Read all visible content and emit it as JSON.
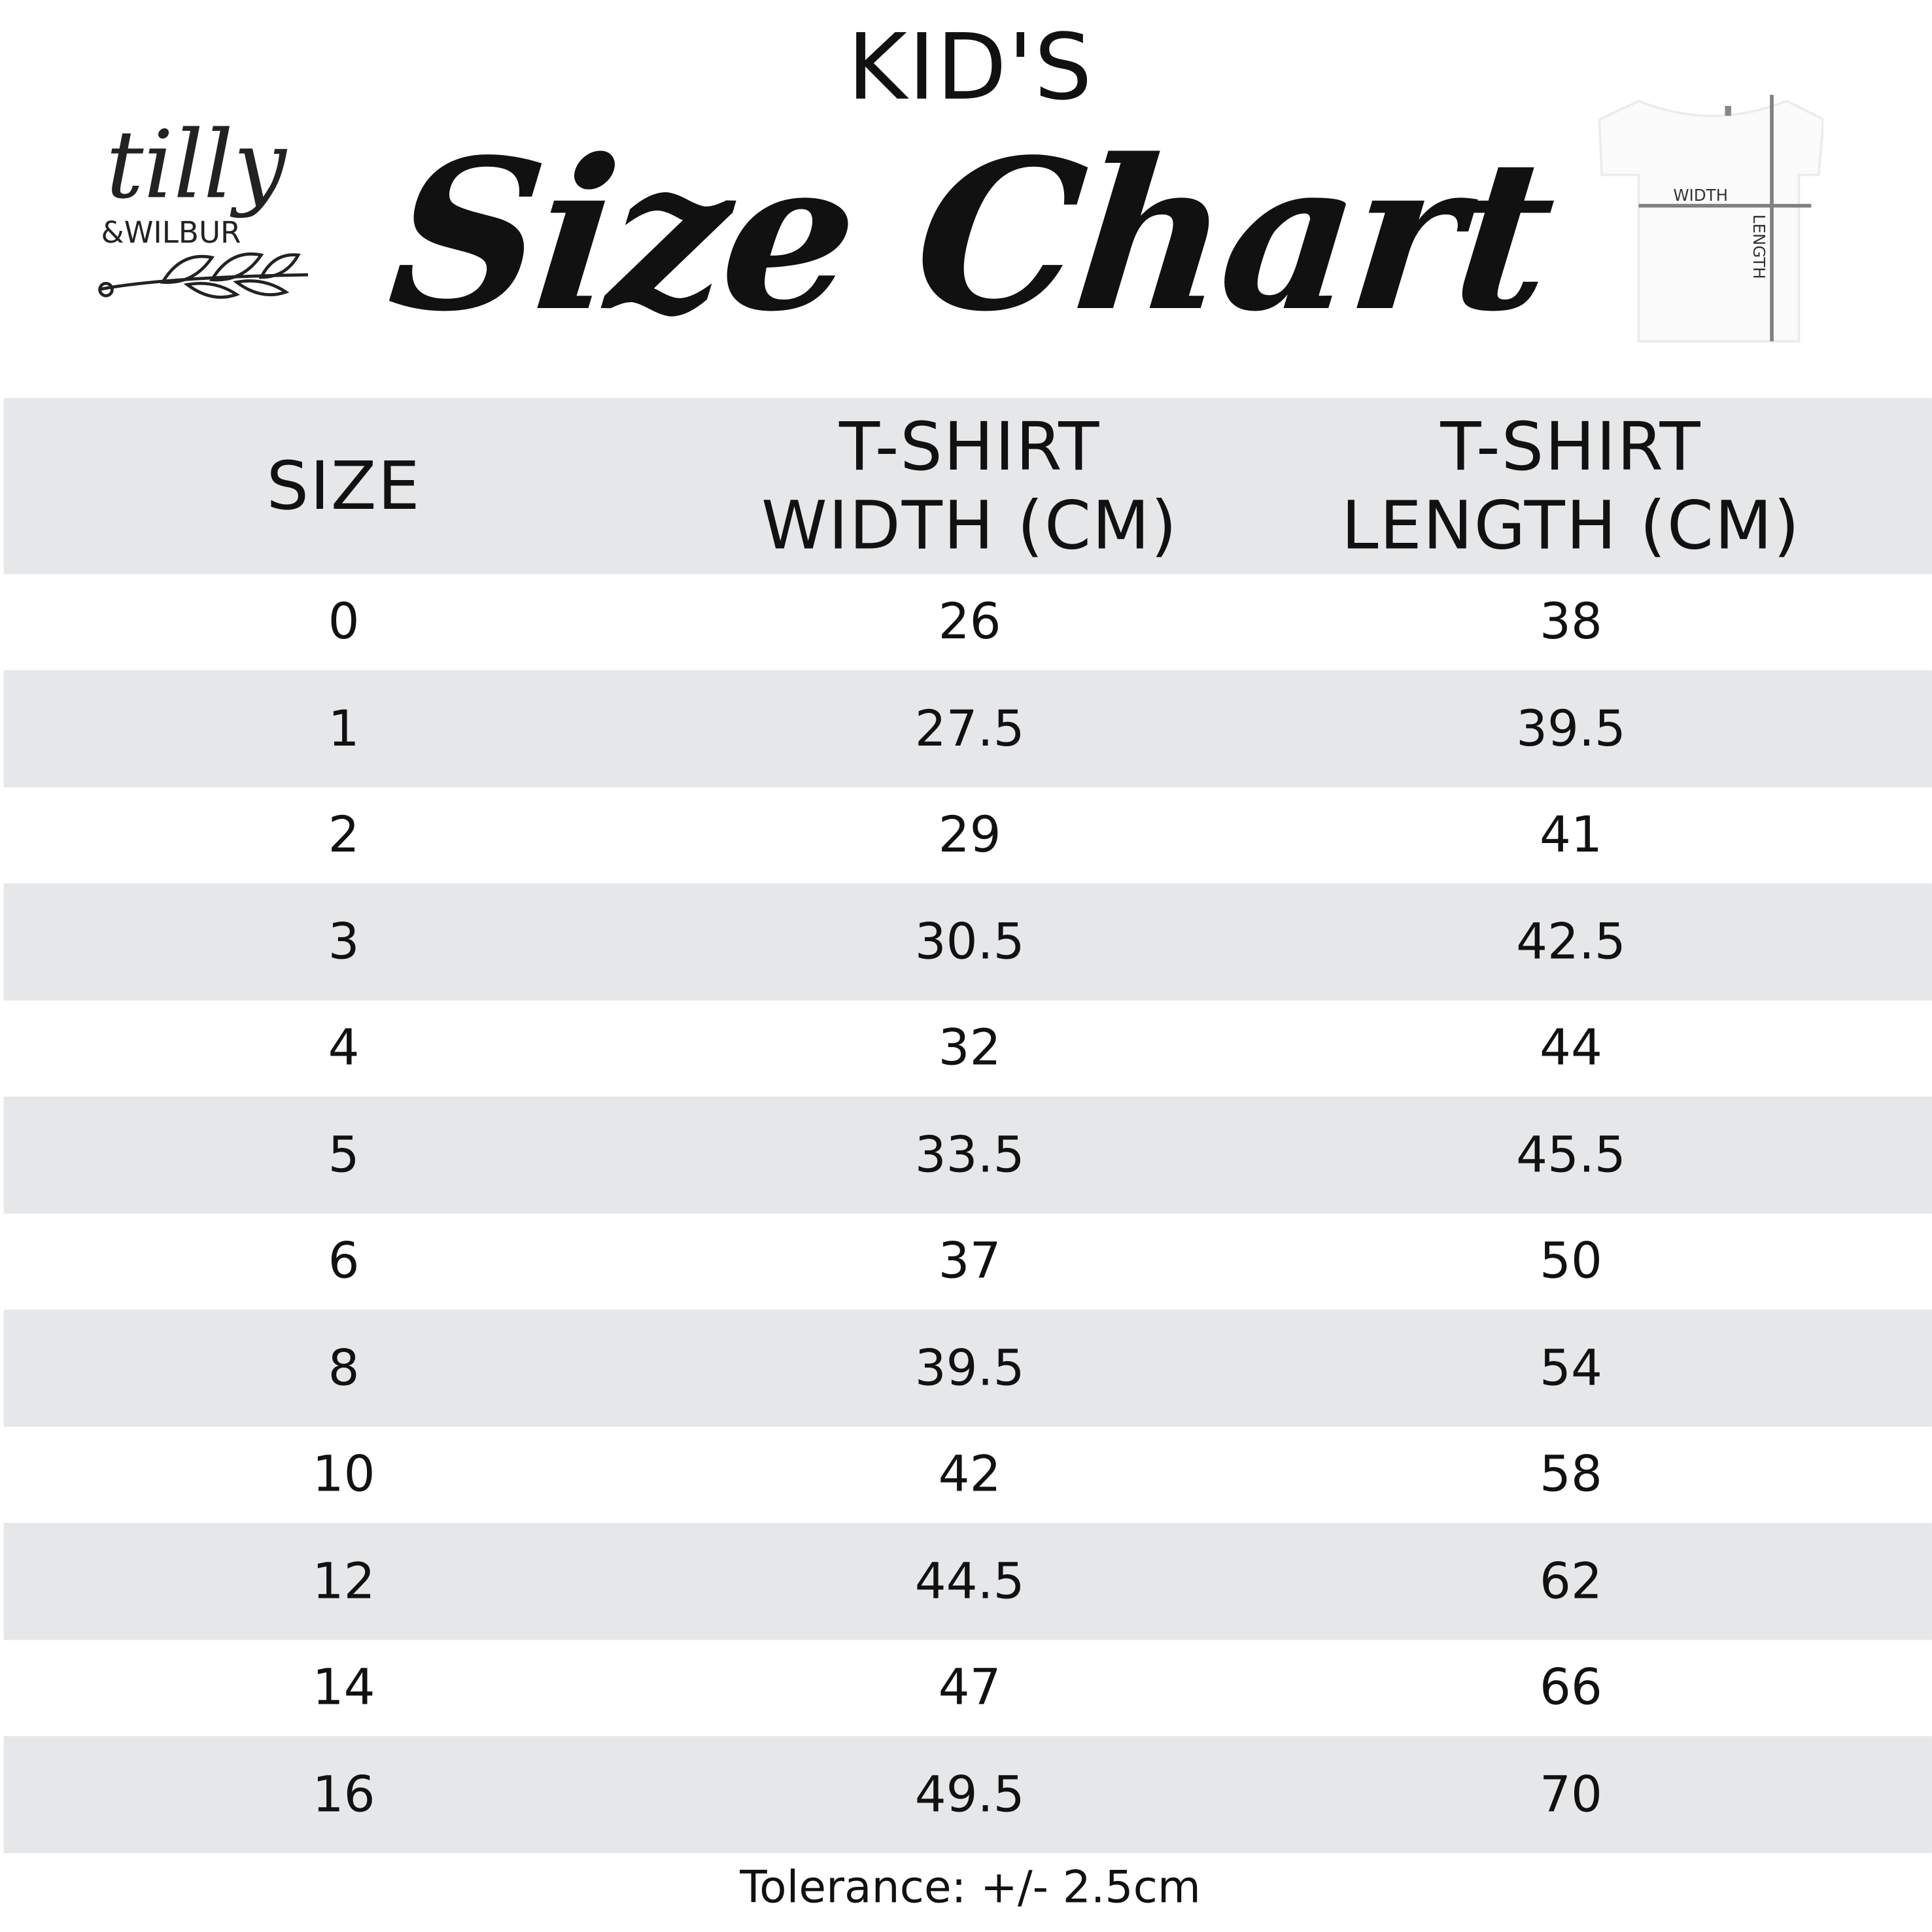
{
  "header": {
    "kids_label": "KID'S",
    "title": "Size Chart",
    "logo": {
      "line1": "tilly",
      "line2": "&WILBUR",
      "icon": "leaf-branch-icon"
    },
    "garment_diagram": {
      "width_label": "WIDTH",
      "length_label": "LENGTH",
      "icon": "t-shirt-icon"
    }
  },
  "table": {
    "columns": [
      "SIZE",
      "T-SHIRT WIDTH (CM)",
      "T-SHIRT LENGTH (CM)"
    ],
    "column_lines": [
      [
        "SIZE"
      ],
      [
        "T-SHIRT",
        "WIDTH (CM)"
      ],
      [
        "T-SHIRT",
        "LENGTH (CM)"
      ]
    ],
    "rows": [
      [
        "0",
        "26",
        "38"
      ],
      [
        "1",
        "27.5",
        "39.5"
      ],
      [
        "2",
        "29",
        "41"
      ],
      [
        "3",
        "30.5",
        "42.5"
      ],
      [
        "4",
        "32",
        "44"
      ],
      [
        "5",
        "33.5",
        "45.5"
      ],
      [
        "6",
        "37",
        "50"
      ],
      [
        "8",
        "39.5",
        "54"
      ],
      [
        "10",
        "42",
        "58"
      ],
      [
        "12",
        "44.5",
        "62"
      ],
      [
        "14",
        "47",
        "66"
      ],
      [
        "16",
        "49.5",
        "70"
      ]
    ]
  },
  "footer": {
    "tolerance": "Tolerance: +/- 2.5cm"
  },
  "colors": {
    "row_stripe": "#e6e7e9",
    "text": "#111111",
    "diagram_line": "#808080"
  }
}
